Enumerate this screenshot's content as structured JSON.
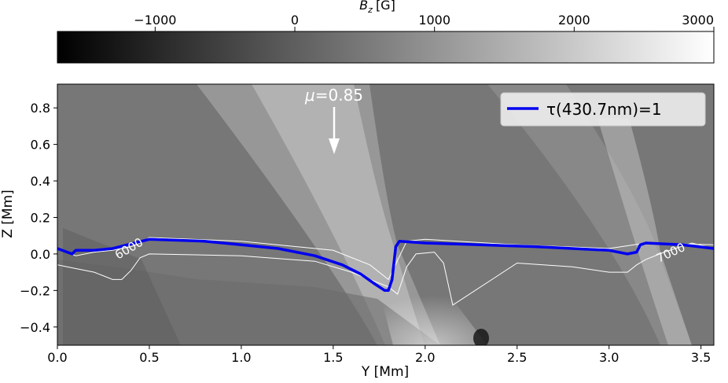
{
  "chart_data": {
    "type": "heatmap",
    "colorbar": {
      "label_main": "B",
      "label_sub": "z",
      "label_unit": "[G]",
      "range": [
        -1700,
        3000
      ],
      "ticks": [
        -1000,
        0,
        1000,
        2000,
        3000
      ],
      "tick_labels": [
        "−1000",
        "0",
        "1000",
        "2000",
        "3000"
      ],
      "colormap": "gray"
    },
    "xlabel": "Y [Mm]",
    "ylabel": "Z [Mm]",
    "xlim": [
      0.0,
      3.57
    ],
    "ylim": [
      -0.5,
      0.93
    ],
    "xticks": [
      0.0,
      0.5,
      1.0,
      1.5,
      2.0,
      2.5,
      3.0,
      3.5
    ],
    "xtick_labels": [
      "0.0",
      "0.5",
      "1.0",
      "1.5",
      "2.0",
      "2.5",
      "3.0",
      "3.5"
    ],
    "yticks": [
      -0.4,
      -0.2,
      0.0,
      0.2,
      0.4,
      0.6,
      0.8
    ],
    "ytick_labels": [
      "−0.4",
      "−0.2",
      "0.0",
      "0.2",
      "0.4",
      "0.6",
      "0.8"
    ],
    "series": [
      {
        "name": "τ(430.7nm)=1",
        "color": "#0000ee",
        "x": [
          0.0,
          0.08,
          0.1,
          0.2,
          0.3,
          0.5,
          0.8,
          1.0,
          1.2,
          1.4,
          1.55,
          1.65,
          1.72,
          1.78,
          1.8,
          1.82,
          1.84,
          1.86,
          2.0,
          2.3,
          2.6,
          2.8,
          3.0,
          3.1,
          3.15,
          3.17,
          3.2,
          3.4,
          3.57
        ],
        "y": [
          0.03,
          0.0,
          0.02,
          0.02,
          0.03,
          0.08,
          0.07,
          0.05,
          0.03,
          -0.01,
          -0.06,
          -0.11,
          -0.16,
          -0.2,
          -0.2,
          -0.14,
          0.04,
          0.07,
          0.06,
          0.05,
          0.04,
          0.03,
          0.02,
          0.0,
          0.01,
          0.05,
          0.06,
          0.05,
          0.03
        ]
      }
    ],
    "contours": [
      {
        "label": "6000",
        "color": "#ffffff",
        "x": [
          0.0,
          0.1,
          0.2,
          0.3,
          0.4,
          0.45,
          0.5,
          1.0,
          1.5,
          1.7,
          1.8,
          1.9,
          2.0,
          2.5,
          3.0,
          3.2,
          3.57
        ],
        "y": [
          0.03,
          -0.01,
          0.01,
          0.02,
          0.04,
          0.06,
          0.09,
          0.07,
          0.02,
          -0.06,
          -0.14,
          0.07,
          0.08,
          0.05,
          0.03,
          0.06,
          0.05
        ]
      },
      {
        "label": "7000",
        "color": "#ffffff",
        "x": [
          0.0,
          0.1,
          0.2,
          0.3,
          0.35,
          0.4,
          0.45,
          0.5,
          1.0,
          1.4,
          1.6,
          1.8,
          1.85,
          1.9,
          1.95,
          2.05,
          2.1,
          2.15,
          2.5,
          2.8,
          3.0,
          3.1,
          3.15,
          3.2,
          3.3,
          3.45,
          3.57
        ],
        "y": [
          -0.06,
          -0.08,
          -0.1,
          -0.14,
          -0.14,
          -0.09,
          -0.02,
          0.0,
          -0.01,
          -0.04,
          -0.1,
          -0.18,
          -0.22,
          -0.07,
          0.0,
          0.01,
          -0.05,
          -0.28,
          -0.05,
          -0.07,
          -0.1,
          -0.1,
          -0.06,
          -0.03,
          0.01,
          0.06,
          0.03
        ]
      }
    ],
    "legend": {
      "position": "top-right",
      "entry": "τ(430.7nm)=1"
    },
    "annotations": [
      {
        "text_prefix": "μ",
        "text_value": "=0.85",
        "arrow": "down",
        "x": 1.47,
        "y_from": 0.8,
        "y_to": 0.56
      },
      {
        "text": "6000",
        "x": 0.3,
        "y": 0.03,
        "rotation": -30
      },
      {
        "text": "7000",
        "x": 3.4,
        "y": 0.0,
        "rotation": -25
      }
    ],
    "grid": false
  }
}
